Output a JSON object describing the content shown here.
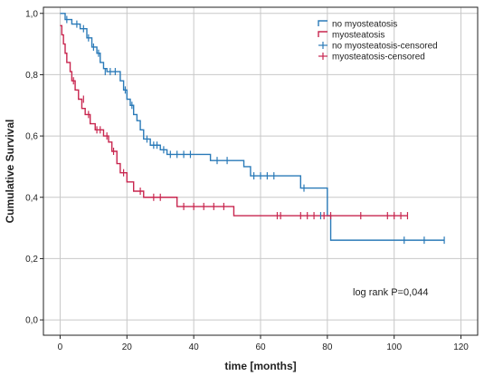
{
  "chart_data": {
    "type": "line",
    "xlabel": "time [months]",
    "ylabel": "Cumulative Survival",
    "xlim": [
      -5,
      125
    ],
    "ylim": [
      -0.05,
      1.02
    ],
    "x_ticks": [
      0,
      20,
      40,
      60,
      80,
      100,
      120
    ],
    "y_ticks": [
      0.0,
      0.2,
      0.4,
      0.6,
      0.8,
      1.0
    ],
    "x_tick_labels": [
      "0",
      "20",
      "40",
      "60",
      "80",
      "100",
      "120"
    ],
    "y_tick_labels": [
      "0,0",
      "0,2",
      "0,4",
      "0,6",
      "0,8",
      "1,0"
    ],
    "grid": true,
    "legend_position": "top-right",
    "annotation": "log rank P=0,044",
    "legend": [
      {
        "label": "no myosteatosis",
        "kind": "step",
        "color": "#2a7ab8"
      },
      {
        "label": "myosteatosis",
        "kind": "step",
        "color": "#c8264f"
      },
      {
        "label": "no myosteatosis-censored",
        "kind": "censor",
        "color": "#2a7ab8"
      },
      {
        "label": "myosteatosis-censored",
        "kind": "censor",
        "color": "#c8264f"
      }
    ],
    "series": [
      {
        "name": "no myosteatosis",
        "color": "#2a7ab8",
        "steps": [
          [
            0,
            1.0
          ],
          [
            1.5,
            0.98
          ],
          [
            3.5,
            0.965
          ],
          [
            6,
            0.95
          ],
          [
            8,
            0.92
          ],
          [
            9.5,
            0.89
          ],
          [
            11,
            0.87
          ],
          [
            12,
            0.84
          ],
          [
            13,
            0.82
          ],
          [
            14,
            0.81
          ],
          [
            18,
            0.78
          ],
          [
            19,
            0.75
          ],
          [
            20,
            0.72
          ],
          [
            21,
            0.7
          ],
          [
            22,
            0.67
          ],
          [
            23,
            0.65
          ],
          [
            24,
            0.62
          ],
          [
            25,
            0.59
          ],
          [
            27,
            0.57
          ],
          [
            30,
            0.555
          ],
          [
            32,
            0.54
          ],
          [
            45,
            0.52
          ],
          [
            55,
            0.5
          ],
          [
            57,
            0.47
          ],
          [
            72,
            0.43
          ],
          [
            80,
            0.34
          ],
          [
            81,
            0.26
          ]
        ],
        "end_x": 115,
        "censored": [
          [
            2,
            0.98
          ],
          [
            5,
            0.965
          ],
          [
            7,
            0.95
          ],
          [
            8.5,
            0.92
          ],
          [
            10,
            0.89
          ],
          [
            11.5,
            0.87
          ],
          [
            13.5,
            0.81
          ],
          [
            15,
            0.81
          ],
          [
            16.5,
            0.81
          ],
          [
            19.5,
            0.75
          ],
          [
            21.5,
            0.7
          ],
          [
            26,
            0.59
          ],
          [
            28,
            0.57
          ],
          [
            29,
            0.57
          ],
          [
            31,
            0.555
          ],
          [
            33,
            0.54
          ],
          [
            35,
            0.54
          ],
          [
            37,
            0.54
          ],
          [
            39,
            0.54
          ],
          [
            47,
            0.52
          ],
          [
            50,
            0.52
          ],
          [
            58,
            0.47
          ],
          [
            60,
            0.47
          ],
          [
            62,
            0.47
          ],
          [
            64,
            0.47
          ],
          [
            73,
            0.43
          ],
          [
            78,
            0.34
          ],
          [
            103,
            0.26
          ],
          [
            109,
            0.26
          ],
          [
            115,
            0.26
          ]
        ]
      },
      {
        "name": "myosteatosis",
        "color": "#c8264f",
        "steps": [
          [
            0,
            0.96
          ],
          [
            0.5,
            0.93
          ],
          [
            1,
            0.9
          ],
          [
            1.5,
            0.87
          ],
          [
            2,
            0.84
          ],
          [
            3,
            0.81
          ],
          [
            3.5,
            0.78
          ],
          [
            4.5,
            0.75
          ],
          [
            5.5,
            0.72
          ],
          [
            6.5,
            0.69
          ],
          [
            7.5,
            0.67
          ],
          [
            9,
            0.64
          ],
          [
            10.5,
            0.62
          ],
          [
            13,
            0.6
          ],
          [
            14.5,
            0.58
          ],
          [
            15.5,
            0.55
          ],
          [
            17,
            0.51
          ],
          [
            18,
            0.48
          ],
          [
            20,
            0.45
          ],
          [
            22,
            0.42
          ],
          [
            25,
            0.4
          ],
          [
            35,
            0.37
          ],
          [
            52,
            0.34
          ]
        ],
        "end_x": 104,
        "censored": [
          [
            4,
            0.78
          ],
          [
            7,
            0.72
          ],
          [
            8.5,
            0.67
          ],
          [
            11,
            0.62
          ],
          [
            12,
            0.62
          ],
          [
            14,
            0.6
          ],
          [
            16,
            0.55
          ],
          [
            19,
            0.48
          ],
          [
            24,
            0.42
          ],
          [
            28,
            0.4
          ],
          [
            30,
            0.4
          ],
          [
            37,
            0.37
          ],
          [
            40,
            0.37
          ],
          [
            43,
            0.37
          ],
          [
            46,
            0.37
          ],
          [
            49,
            0.37
          ],
          [
            65,
            0.34
          ],
          [
            66,
            0.34
          ],
          [
            72,
            0.34
          ],
          [
            74,
            0.34
          ],
          [
            76,
            0.34
          ],
          [
            79,
            0.34
          ],
          [
            81,
            0.34
          ],
          [
            90,
            0.34
          ],
          [
            98,
            0.34
          ],
          [
            100,
            0.34
          ],
          [
            102,
            0.34
          ],
          [
            104,
            0.34
          ]
        ]
      }
    ]
  }
}
